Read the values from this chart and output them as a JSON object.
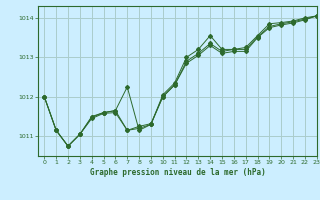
{
  "title": "Graphe pression niveau de la mer (hPa)",
  "bg_color": "#cceeff",
  "grid_color": "#aacccc",
  "line_color": "#2d6a2d",
  "xlim": [
    -0.5,
    23
  ],
  "ylim": [
    1010.5,
    1014.3
  ],
  "yticks": [
    1011,
    1012,
    1013,
    1014
  ],
  "xticks": [
    0,
    1,
    2,
    3,
    4,
    5,
    6,
    7,
    8,
    9,
    10,
    11,
    12,
    13,
    14,
    15,
    16,
    17,
    18,
    19,
    20,
    21,
    22,
    23
  ],
  "series1_x": [
    0,
    1,
    2,
    3,
    4,
    5,
    6,
    7,
    8,
    9,
    10,
    11,
    12,
    13,
    14,
    15,
    16,
    17,
    18,
    19,
    20,
    21,
    22,
    23
  ],
  "series1_y": [
    1012.0,
    1011.15,
    1010.75,
    1011.05,
    1011.5,
    1011.6,
    1011.65,
    1012.25,
    1011.15,
    1011.3,
    1012.05,
    1012.35,
    1013.0,
    1013.2,
    1013.55,
    1013.2,
    1013.2,
    1013.25,
    1013.55,
    1013.85,
    1013.88,
    1013.92,
    1014.0,
    1014.05
  ],
  "series2_x": [
    0,
    1,
    2,
    3,
    4,
    5,
    6,
    7,
    8,
    9,
    10,
    11,
    12,
    13,
    14,
    15,
    16,
    17,
    18,
    19,
    20,
    21,
    22,
    23
  ],
  "series2_y": [
    1012.0,
    1011.15,
    1010.75,
    1011.05,
    1011.45,
    1011.58,
    1011.6,
    1011.15,
    1011.2,
    1011.3,
    1012.0,
    1012.3,
    1012.85,
    1013.05,
    1013.3,
    1013.1,
    1013.15,
    1013.15,
    1013.5,
    1013.75,
    1013.82,
    1013.87,
    1013.95,
    1014.05
  ],
  "series3_x": [
    0,
    1,
    2,
    3,
    4,
    5,
    6,
    7,
    8,
    9,
    10,
    11,
    12,
    13,
    14,
    15,
    16,
    17,
    18,
    19,
    20,
    21,
    22,
    23
  ],
  "series3_y": [
    1012.0,
    1011.15,
    1010.75,
    1011.05,
    1011.48,
    1011.6,
    1011.65,
    1011.15,
    1011.25,
    1011.32,
    1012.0,
    1012.3,
    1012.9,
    1013.1,
    1013.35,
    1013.15,
    1013.2,
    1013.2,
    1013.52,
    1013.78,
    1013.85,
    1013.9,
    1013.97,
    1014.05
  ]
}
